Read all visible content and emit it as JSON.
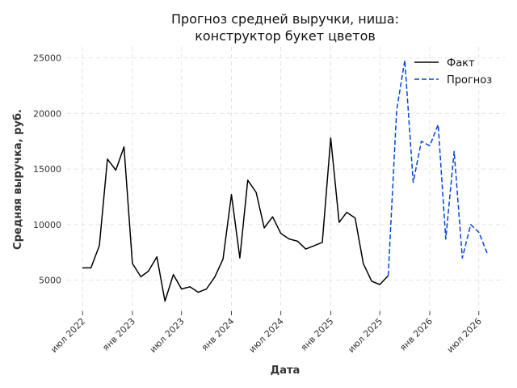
{
  "chart_data": {
    "type": "line",
    "title": [
      "Прогноз средней выручки, ниша:",
      "конструктор букет цветов"
    ],
    "xlabel": "Дата",
    "ylabel": "Средняя выручка, руб.",
    "ylim": [
      2200,
      26000
    ],
    "y_ticks": [
      5000,
      10000,
      15000,
      20000,
      25000
    ],
    "x_ticks": [
      {
        "date": "2022-07-01",
        "label": "июл 2022"
      },
      {
        "date": "2023-01-01",
        "label": "янв 2023"
      },
      {
        "date": "2023-07-01",
        "label": "июл 2023"
      },
      {
        "date": "2024-01-01",
        "label": "янв 2024"
      },
      {
        "date": "2024-07-01",
        "label": "июл 2024"
      },
      {
        "date": "2025-01-01",
        "label": "янв 2025"
      },
      {
        "date": "2025-07-01",
        "label": "июл 2025"
      },
      {
        "date": "2026-01-01",
        "label": "янв 2026"
      },
      {
        "date": "2026-07-01",
        "label": "июл 2026"
      }
    ],
    "xlim": [
      "2022-05-05",
      "2026-10-05"
    ],
    "grid": true,
    "legend_position": "top-right",
    "series": [
      {
        "name": "Факт",
        "color": "#000000",
        "style": "solid",
        "points": [
          [
            "2022-07-01",
            6100
          ],
          [
            "2022-08-01",
            6100
          ],
          [
            "2022-09-01",
            8100
          ],
          [
            "2022-10-01",
            15900
          ],
          [
            "2022-11-01",
            14900
          ],
          [
            "2022-12-01",
            17000
          ],
          [
            "2023-01-01",
            6500
          ],
          [
            "2023-02-01",
            5300
          ],
          [
            "2023-03-01",
            5800
          ],
          [
            "2023-04-01",
            7100
          ],
          [
            "2023-05-01",
            3100
          ],
          [
            "2023-06-01",
            5500
          ],
          [
            "2023-07-01",
            4200
          ],
          [
            "2023-08-01",
            4400
          ],
          [
            "2023-09-01",
            3900
          ],
          [
            "2023-10-01",
            4200
          ],
          [
            "2023-11-01",
            5300
          ],
          [
            "2023-12-01",
            6900
          ],
          [
            "2024-01-01",
            12700
          ],
          [
            "2024-02-01",
            7000
          ],
          [
            "2024-03-01",
            14000
          ],
          [
            "2024-04-01",
            12900
          ],
          [
            "2024-05-01",
            9700
          ],
          [
            "2024-06-01",
            10700
          ],
          [
            "2024-07-01",
            9200
          ],
          [
            "2024-08-01",
            8700
          ],
          [
            "2024-09-01",
            8500
          ],
          [
            "2024-10-01",
            7800
          ],
          [
            "2024-11-01",
            8100
          ],
          [
            "2024-12-01",
            8400
          ],
          [
            "2025-01-01",
            17800
          ],
          [
            "2025-02-01",
            10200
          ],
          [
            "2025-03-01",
            11100
          ],
          [
            "2025-04-01",
            10600
          ],
          [
            "2025-05-01",
            6500
          ],
          [
            "2025-06-01",
            4900
          ],
          [
            "2025-07-01",
            4600
          ],
          [
            "2025-08-01",
            5400
          ]
        ]
      },
      {
        "name": "Прогноз",
        "color": "#0044dd",
        "style": "dashed",
        "points": [
          [
            "2025-08-01",
            5400
          ],
          [
            "2025-09-01",
            20300
          ],
          [
            "2025-10-01",
            24800
          ],
          [
            "2025-11-01",
            13800
          ],
          [
            "2025-12-01",
            17500
          ],
          [
            "2026-01-01",
            17100
          ],
          [
            "2026-02-01",
            19000
          ],
          [
            "2026-03-01",
            8700
          ],
          [
            "2026-04-01",
            16600
          ],
          [
            "2026-05-01",
            7000
          ],
          [
            "2026-06-01",
            10000
          ],
          [
            "2026-07-01",
            9300
          ],
          [
            "2026-08-01",
            7400
          ]
        ]
      }
    ]
  }
}
